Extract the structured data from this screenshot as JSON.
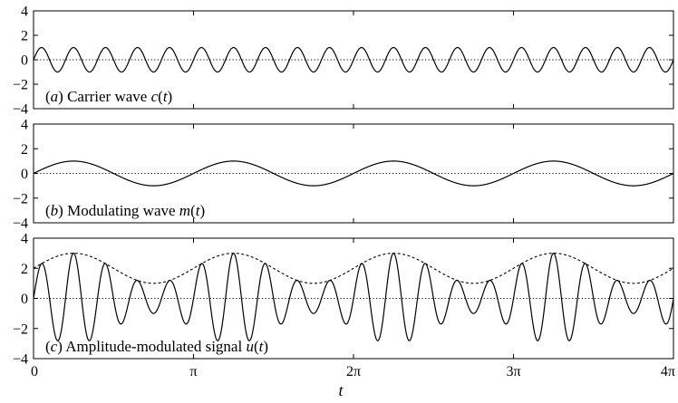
{
  "chart_data": [
    {
      "type": "line",
      "panel_label": "(a) Carrier wave c(t)",
      "panel_label_parts": [
        {
          "text": "(",
          "italic": false
        },
        {
          "text": "a",
          "italic": true
        },
        {
          "text": ") Carrier wave ",
          "italic": false
        },
        {
          "text": "c",
          "italic": true
        },
        {
          "text": "(",
          "italic": false
        },
        {
          "text": "t",
          "italic": true
        },
        {
          "text": ")",
          "italic": false
        }
      ],
      "ylim": [
        -4,
        4
      ],
      "yticks": [
        "4",
        "2",
        "0",
        "−2",
        "−4"
      ],
      "ytick_values": [
        4,
        2,
        0,
        -2,
        -4
      ],
      "xlim": [
        0,
        12.566
      ],
      "series": [
        {
          "values_formula": "sin(10t)",
          "amplitude": 1,
          "angular_frequency": 10,
          "style": "solid"
        },
        {
          "values_formula": "0",
          "constant": 0,
          "style": "dotted"
        }
      ]
    },
    {
      "type": "line",
      "panel_label": "(b) Modulating wave m(t)",
      "panel_label_parts": [
        {
          "text": "(",
          "italic": false
        },
        {
          "text": "b",
          "italic": true
        },
        {
          "text": ") Modulating wave ",
          "italic": false
        },
        {
          "text": "m",
          "italic": true
        },
        {
          "text": "(",
          "italic": false
        },
        {
          "text": "t",
          "italic": true
        },
        {
          "text": ")",
          "italic": false
        }
      ],
      "ylim": [
        -4,
        4
      ],
      "yticks": [
        "4",
        "2",
        "0",
        "−2",
        "−4"
      ],
      "ytick_values": [
        4,
        2,
        0,
        -2,
        -4
      ],
      "xlim": [
        0,
        12.566
      ],
      "series": [
        {
          "values_formula": "sin(2t)",
          "amplitude": 1,
          "angular_frequency": 2,
          "style": "solid"
        },
        {
          "values_formula": "0",
          "constant": 0,
          "style": "dotted"
        }
      ]
    },
    {
      "type": "line",
      "panel_label": "(c) Amplitude-modulated signal u(t)",
      "panel_label_parts": [
        {
          "text": "(",
          "italic": false
        },
        {
          "text": "c",
          "italic": true
        },
        {
          "text": ") Amplitude-modulated signal ",
          "italic": false
        },
        {
          "text": "u",
          "italic": true
        },
        {
          "text": "(",
          "italic": false
        },
        {
          "text": "t",
          "italic": true
        },
        {
          "text": ")",
          "italic": false
        }
      ],
      "ylim": [
        -4,
        4
      ],
      "yticks": [
        "4",
        "2",
        "0",
        "−2",
        "−4"
      ],
      "ytick_values": [
        4,
        2,
        0,
        -2,
        -4
      ],
      "xticks": [
        "0",
        "π",
        "2π",
        "3π",
        "4π"
      ],
      "xtick_values": [
        0,
        3.14159,
        6.28319,
        9.42478,
        12.56637
      ],
      "xlabel": "t",
      "xlim": [
        0,
        12.566
      ],
      "series": [
        {
          "values_formula": "(2 + sin(2t))·sin(10t)",
          "offset": 2,
          "mod_amplitude": 1,
          "mod_angular_frequency": 2,
          "carrier_angular_frequency": 10,
          "style": "solid"
        },
        {
          "values_formula": "2 + sin(2t)",
          "offset": 2,
          "mod_amplitude": 1,
          "mod_angular_frequency": 2,
          "style": "dashed"
        },
        {
          "values_formula": "0",
          "constant": 0,
          "style": "dotted"
        }
      ]
    }
  ],
  "colors": {
    "line": "#000000",
    "background": "#ffffff"
  }
}
